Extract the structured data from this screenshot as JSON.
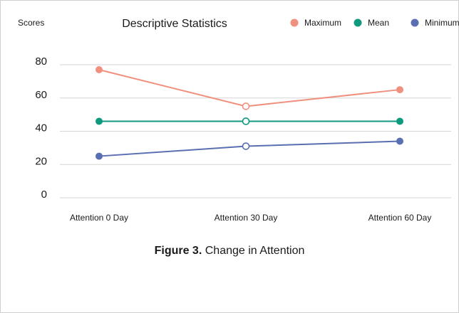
{
  "chart_data": {
    "type": "line",
    "title": "Descriptive Statistics",
    "ylabel": "Scores",
    "xlabel": "",
    "categories": [
      "Attention 0 Day",
      "Attention 30 Day",
      "Attention 60 Day"
    ],
    "yticks": [
      0,
      20,
      40,
      60,
      80
    ],
    "ylim": [
      0,
      80
    ],
    "grid": true,
    "legend_position": "top-right",
    "series": [
      {
        "name": "Maximum",
        "color": "#f0907e",
        "values": [
          77,
          55,
          65
        ],
        "hollow": [
          false,
          true,
          false
        ]
      },
      {
        "name": "Mean",
        "color": "#0f9a7f",
        "values": [
          46,
          46,
          46
        ],
        "hollow": [
          false,
          true,
          false
        ]
      },
      {
        "name": "Minimum",
        "color": "#5a6fb2",
        "values": [
          25,
          31,
          34
        ],
        "hollow": [
          false,
          true,
          false
        ]
      }
    ]
  },
  "caption": {
    "label": "Figure 3.",
    "text": "Change in Attention"
  }
}
